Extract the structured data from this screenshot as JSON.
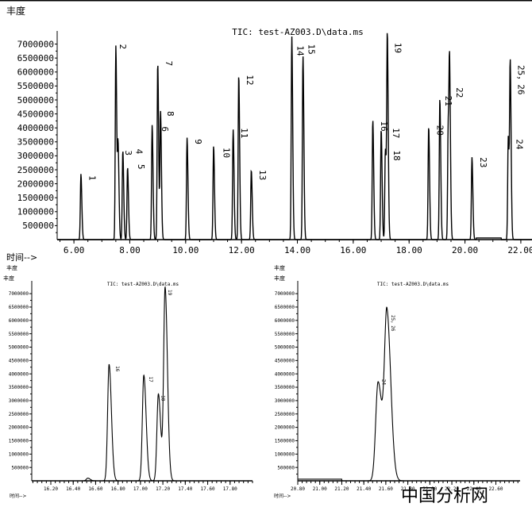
{
  "watermark": "中国分析网",
  "chart_data": [
    {
      "type": "line",
      "title": "TIC: test-AZ003.D\\data.ms",
      "ylabel": "丰度",
      "xlabel": "时间-->",
      "xlim": [
        5.4,
        22.4
      ],
      "ylim": [
        0,
        7300000
      ],
      "xticks": [
        "6.00",
        "8.00",
        "10.00",
        "12.00",
        "14.00",
        "16.00",
        "18.00",
        "20.00",
        "22.00"
      ],
      "yticks": [
        "500000",
        "1000000",
        "1500000",
        "2000000",
        "2500000",
        "3000000",
        "3500000",
        "4000000",
        "4500000",
        "5000000",
        "5500000",
        "6000000",
        "6500000",
        "7000000"
      ],
      "peaks": [
        {
          "t": 6.25,
          "h": 2350000
        },
        {
          "t": 7.5,
          "h": 6950000
        },
        {
          "t": 7.58,
          "h": 3300000
        },
        {
          "t": 7.75,
          "h": 3200000
        },
        {
          "t": 7.92,
          "h": 2600000
        },
        {
          "t": 8.8,
          "h": 4100000
        },
        {
          "t": 9.0,
          "h": 6350000
        },
        {
          "t": 9.1,
          "h": 4600000
        },
        {
          "t": 10.05,
          "h": 3650000
        },
        {
          "t": 11.0,
          "h": 3350000
        },
        {
          "t": 11.7,
          "h": 3950000
        },
        {
          "t": 11.9,
          "h": 5900000
        },
        {
          "t": 12.35,
          "h": 2500000
        },
        {
          "t": 13.8,
          "h": 7300000
        },
        {
          "t": 14.2,
          "h": 6600000
        },
        {
          "t": 16.7,
          "h": 4300000
        },
        {
          "t": 17.0,
          "h": 3950000
        },
        {
          "t": 17.15,
          "h": 3250000
        },
        {
          "t": 17.22,
          "h": 7200000
        },
        {
          "t": 18.7,
          "h": 4050000
        },
        {
          "t": 19.1,
          "h": 5050000
        },
        {
          "t": 19.4,
          "h": 4100000
        },
        {
          "t": 19.45,
          "h": 5500000
        },
        {
          "t": 20.25,
          "h": 2950000
        },
        {
          "t": 21.55,
          "h": 3700000
        },
        {
          "t": 21.62,
          "h": 6200000
        }
      ],
      "annotations": [
        {
          "text": "1",
          "t": 6.55,
          "y": 2300000
        },
        {
          "text": "2",
          "t": 7.65,
          "y": 7000000
        },
        {
          "text": "3",
          "t": 7.85,
          "y": 3200000
        },
        {
          "text": "4",
          "t": 8.0,
          "y": 3250000
        },
        {
          "text": "5",
          "t": 8.3,
          "y": 2700000
        },
        {
          "text": "6",
          "t": 9.15,
          "y": 4050000
        },
        {
          "text": "7",
          "t": 9.3,
          "y": 6400000
        },
        {
          "text": "8",
          "t": 9.35,
          "y": 4600000
        },
        {
          "text": "9",
          "t": 10.35,
          "y": 3600000
        },
        {
          "text": "10",
          "t": 11.35,
          "y": 3300000
        },
        {
          "text": "11",
          "t": 12.0,
          "y": 4000000
        },
        {
          "text": "12",
          "t": 12.2,
          "y": 5900000
        },
        {
          "text": "13",
          "t": 12.65,
          "y": 2500000
        },
        {
          "text": "14",
          "t": 14.0,
          "y": 6950000
        },
        {
          "text": "15",
          "t": 14.4,
          "y": 7000000
        },
        {
          "text": "16",
          "t": 17.0,
          "y": 4250000
        },
        {
          "text": "17",
          "t": 17.25,
          "y": 4000000
        },
        {
          "text": "18",
          "t": 17.45,
          "y": 3200000
        },
        {
          "text": "19",
          "t": 17.5,
          "y": 7050000
        },
        {
          "text": "20",
          "t": 19.0,
          "y": 4100000
        },
        {
          "text": "21",
          "t": 19.3,
          "y": 5150000
        },
        {
          "text": "22",
          "t": 19.7,
          "y": 5450000
        },
        {
          "text": "23",
          "t": 20.55,
          "y": 2950000
        },
        {
          "text": "24",
          "t": 21.85,
          "y": 3600000
        },
        {
          "text": "25，26",
          "t": 21.9,
          "y": 6250000
        }
      ],
      "below_labels": [
        "丰度",
        "丰度"
      ]
    },
    {
      "type": "line",
      "title": "TIC: test-AZ003.D\\data.ms",
      "ylabel": "丰度",
      "xlabel": "时间-->",
      "xlim": [
        16.03,
        18.0
      ],
      "ylim": [
        0,
        7300000
      ],
      "xticks": [
        "16.20",
        "16.40",
        "16.60",
        "16.80",
        "17.00",
        "17.20",
        "17.40",
        "17.60",
        "17.80"
      ],
      "yticks": [
        "500000",
        "1000000",
        "1500000",
        "2000000",
        "2500000",
        "3000000",
        "3500000",
        "4000000",
        "4500000",
        "5000000",
        "5500000",
        "6000000",
        "6500000",
        "7000000"
      ],
      "peaks": [
        {
          "t": 16.53,
          "h": 100000
        },
        {
          "t": 16.72,
          "h": 4350000
        },
        {
          "t": 17.03,
          "h": 3950000
        },
        {
          "t": 17.16,
          "h": 3250000
        },
        {
          "t": 17.22,
          "h": 7200000
        }
      ],
      "annotations": [
        {
          "text": "16",
          "t": 16.78,
          "y": 4300000
        },
        {
          "text": "17",
          "t": 17.08,
          "y": 3900000
        },
        {
          "text": "18",
          "t": 17.19,
          "y": 3200000
        },
        {
          "text": "19",
          "t": 17.25,
          "y": 7150000
        }
      ]
    },
    {
      "type": "line",
      "title": "TIC: test-AZ003.D\\data.ms",
      "ylabel": "丰度",
      "xlabel": "时间-->",
      "xlim": [
        20.8,
        22.82
      ],
      "ylim": [
        0,
        7300000
      ],
      "xticks": [
        "20.80",
        "21.00",
        "21.20",
        "21.40",
        "21.60",
        "21.80",
        "22.00",
        "22.20",
        "22.40",
        "22.60"
      ],
      "yticks": [
        "500000",
        "1000000",
        "1500000",
        "2000000",
        "2500000",
        "3000000",
        "3500000",
        "4000000",
        "4500000",
        "5000000",
        "5500000",
        "6000000",
        "6500000",
        "7000000"
      ],
      "peaks": [
        {
          "t": 21.53,
          "h": 3700000
        },
        {
          "t": 21.61,
          "h": 6200000
        }
      ],
      "annotations": [
        {
          "text": "24",
          "t": 21.57,
          "y": 3800000
        },
        {
          "text": "25，26",
          "t": 21.65,
          "y": 6200000
        }
      ]
    }
  ]
}
